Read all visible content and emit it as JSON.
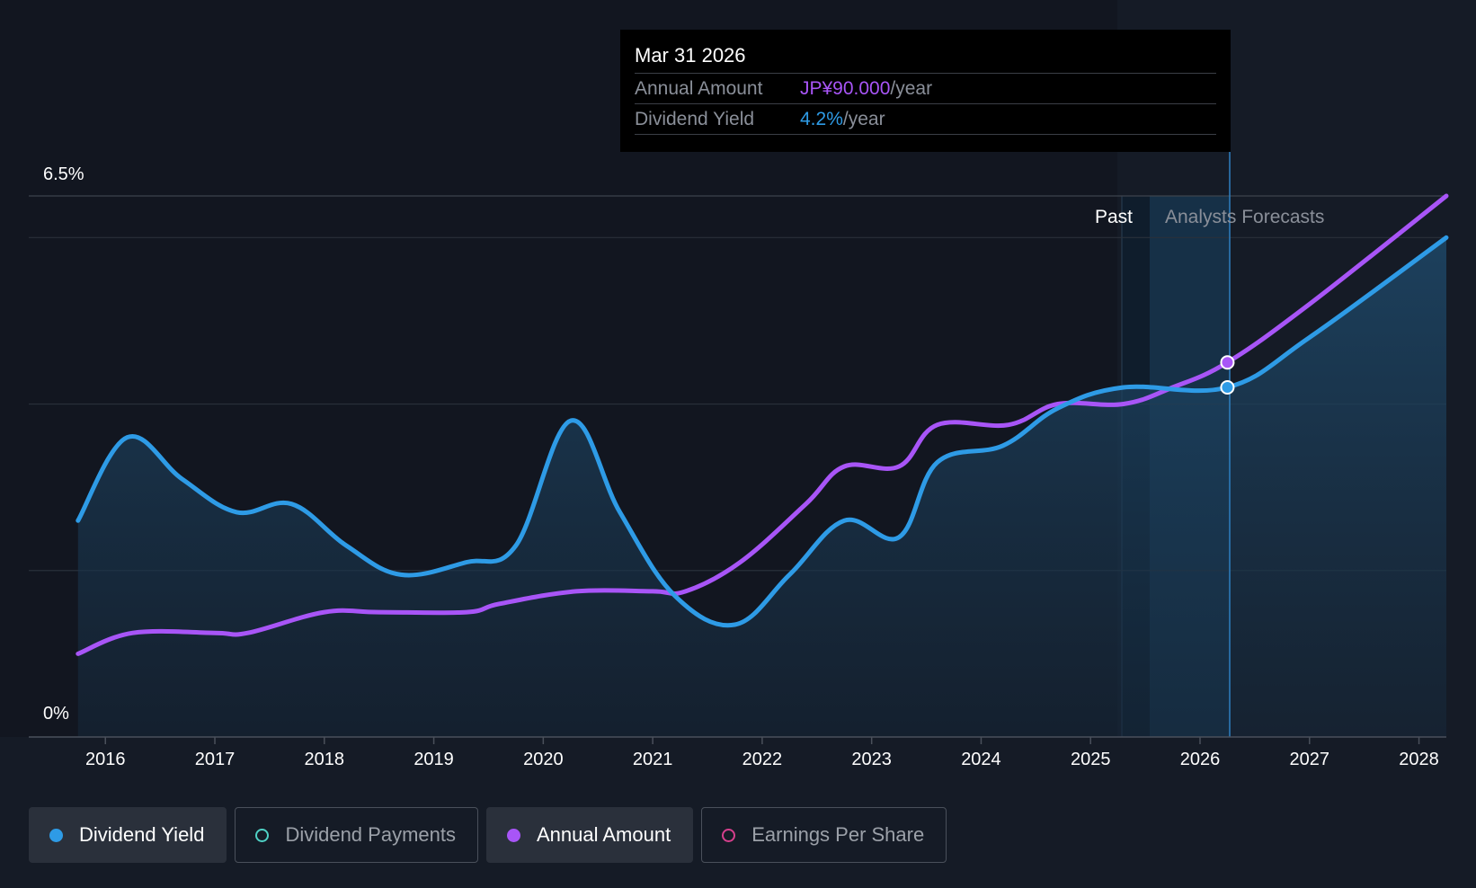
{
  "tooltip": {
    "date": "Mar 31 2026",
    "rows": [
      {
        "label": "Annual Amount",
        "value": "JP¥90.000",
        "unit": "/year"
      },
      {
        "label": "Dividend Yield",
        "value": "4.2%",
        "unit": "/year"
      }
    ]
  },
  "region_labels": {
    "past": "Past",
    "forecast": "Analysts Forecasts"
  },
  "legend": [
    {
      "label": "Dividend Yield",
      "color": "#2e9be6",
      "active": true,
      "filled": true
    },
    {
      "label": "Dividend Payments",
      "color": "#4fd1c5",
      "active": false,
      "filled": false
    },
    {
      "label": "Annual Amount",
      "color": "#a855f7",
      "active": true,
      "filled": true
    },
    {
      "label": "Earnings Per Share",
      "color": "#d53f8c",
      "active": false,
      "filled": false
    }
  ],
  "colors": {
    "yield": "#2e9be6",
    "amount": "#a855f7",
    "background": "#151b26"
  },
  "chart_data": {
    "type": "line",
    "y_labels": [
      "6.5%",
      "0%"
    ],
    "ylim": [
      0,
      6.5
    ],
    "xlim": [
      2015.3,
      2028.25
    ],
    "x_tick_labels": [
      "2016",
      "2017",
      "2018",
      "2019",
      "2020",
      "2021",
      "2022",
      "2023",
      "2024",
      "2025",
      "2026",
      "2027",
      "2028"
    ],
    "x_ticks": [
      2016,
      2017,
      2018,
      2019,
      2020,
      2021,
      2022,
      2023,
      2024,
      2025,
      2026,
      2027,
      2028
    ],
    "grid": true,
    "past_end": 2025.25,
    "forecast_start": 2025.5,
    "cursor_x": 2026.25,
    "series": [
      {
        "name": "Dividend Yield",
        "color": "#2e9be6",
        "points": [
          [
            2015.75,
            2.6
          ],
          [
            2016.2,
            3.6
          ],
          [
            2016.7,
            3.1
          ],
          [
            2017.2,
            2.7
          ],
          [
            2017.7,
            2.8
          ],
          [
            2018.2,
            2.3
          ],
          [
            2018.7,
            1.95
          ],
          [
            2019.3,
            2.1
          ],
          [
            2019.75,
            2.3
          ],
          [
            2020.25,
            3.8
          ],
          [
            2020.7,
            2.7
          ],
          [
            2021.2,
            1.7
          ],
          [
            2021.75,
            1.35
          ],
          [
            2022.25,
            1.95
          ],
          [
            2022.75,
            2.6
          ],
          [
            2023.25,
            2.4
          ],
          [
            2023.6,
            3.3
          ],
          [
            2024.2,
            3.5
          ],
          [
            2024.7,
            3.95
          ],
          [
            2025.3,
            4.2
          ],
          [
            2026.25,
            4.2
          ],
          [
            2027.0,
            4.8
          ],
          [
            2028.25,
            6.0
          ]
        ]
      },
      {
        "name": "Annual Amount",
        "color": "#a855f7",
        "points": [
          [
            2015.75,
            1.0
          ],
          [
            2016.25,
            1.25
          ],
          [
            2017.0,
            1.25
          ],
          [
            2017.3,
            1.25
          ],
          [
            2018.0,
            1.5
          ],
          [
            2018.5,
            1.5
          ],
          [
            2019.3,
            1.5
          ],
          [
            2019.6,
            1.6
          ],
          [
            2020.3,
            1.75
          ],
          [
            2021.0,
            1.75
          ],
          [
            2021.3,
            1.75
          ],
          [
            2021.8,
            2.1
          ],
          [
            2022.4,
            2.8
          ],
          [
            2022.75,
            3.25
          ],
          [
            2023.25,
            3.25
          ],
          [
            2023.6,
            3.75
          ],
          [
            2024.25,
            3.75
          ],
          [
            2024.7,
            4.0
          ],
          [
            2025.3,
            4.0
          ],
          [
            2025.75,
            4.2
          ],
          [
            2026.25,
            4.5
          ],
          [
            2027.0,
            5.2
          ],
          [
            2028.25,
            6.5
          ]
        ]
      }
    ]
  }
}
